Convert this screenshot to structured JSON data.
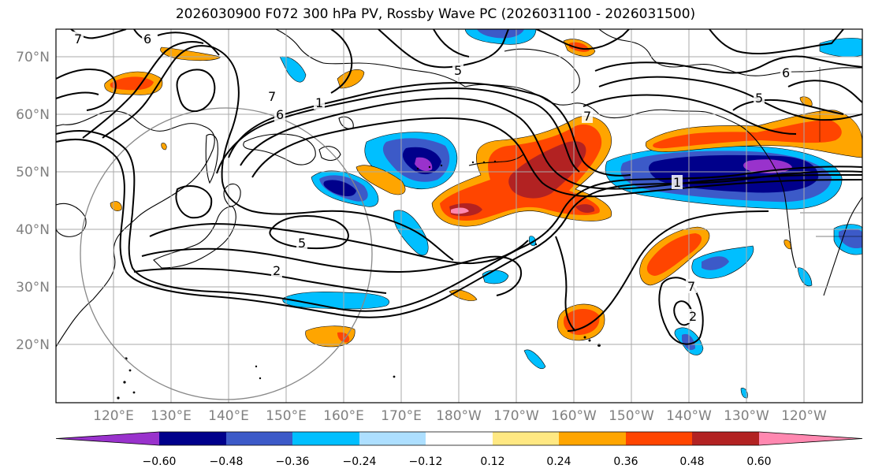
{
  "title": "2026030900 F072 300 hPa PV, Rossby Wave PC (2026031100 - 2026031500)",
  "latitude_labels": [
    "70°N",
    "60°N",
    "50°N",
    "40°N",
    "30°N",
    "20°N"
  ],
  "longitude_labels": [
    "120°E",
    "130°E",
    "140°E",
    "150°E",
    "160°E",
    "170°E",
    "180°W",
    "170°W",
    "160°W",
    "150°W",
    "140°W",
    "130°W",
    "120°W"
  ],
  "colorbar": {
    "ticks": [
      "−0.60",
      "−0.48",
      "−0.36",
      "−0.24",
      "−0.12",
      "0.12",
      "0.24",
      "0.36",
      "0.48",
      "0.60"
    ],
    "colors": [
      "#9932CC",
      "#00008B",
      "#3C5AC8",
      "#00BFFF",
      "#ADDFFF",
      "#FFFFFF",
      "#FFE882",
      "#FFA500",
      "#FF4500",
      "#B22222",
      "#FF88B0"
    ]
  },
  "contour_labels": [
    "7",
    "6",
    "7",
    "6",
    "5",
    "2",
    "1",
    "5",
    "6",
    "5",
    "1",
    "7",
    "2",
    "7"
  ],
  "colors": {
    "grid": "#aaaaaa",
    "contour": "#000000",
    "circle": "#888888",
    "tick_text": "#808080"
  }
}
